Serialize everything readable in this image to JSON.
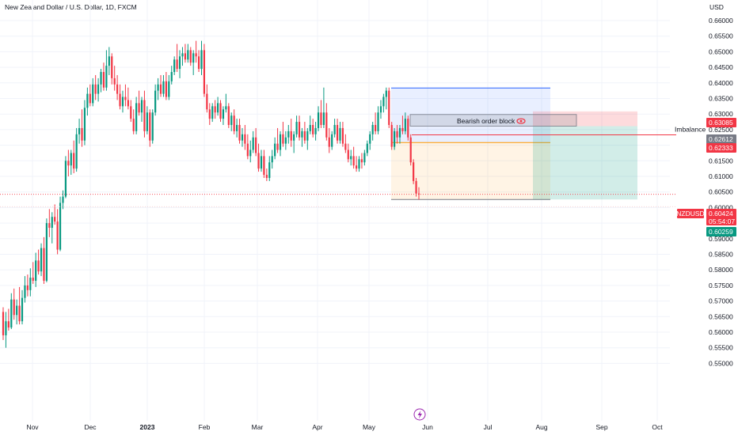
{
  "header": {
    "symbol_title": "New Zealand Dollar / U.S. Dollar, 1D, FXCM",
    "currency": "USD"
  },
  "colors": {
    "up": "#089981",
    "down": "#f23645",
    "price_tag": "#f23645",
    "target_tag": "#089981",
    "neutral_tag": "#787b86",
    "blue_zone": "#2962ff",
    "orange_zone": "#ff9800"
  },
  "chart_data": {
    "type": "candlestick",
    "y_ticks": [
      "0.66000",
      "0.65500",
      "0.65000",
      "0.64500",
      "0.64000",
      "0.63500",
      "0.63000",
      "0.62500",
      "0.62000",
      "0.61500",
      "0.61000",
      "0.60500",
      "0.60000",
      "0.59500",
      "0.59000",
      "0.58500",
      "0.58000",
      "0.57500",
      "0.57000",
      "0.56500",
      "0.56000",
      "0.55500",
      "0.55000"
    ],
    "x_ticks": [
      {
        "label": "Nov",
        "bold": false
      },
      {
        "label": "Dec",
        "bold": false
      },
      {
        "label": "2023",
        "bold": true
      },
      {
        "label": "Feb",
        "bold": false
      },
      {
        "label": "Mar",
        "bold": false
      },
      {
        "label": "Apr",
        "bold": false
      },
      {
        "label": "May",
        "bold": false
      },
      {
        "label": "Jun",
        "bold": false
      },
      {
        "label": "Jul",
        "bold": false
      },
      {
        "label": "Aug",
        "bold": false
      },
      {
        "label": "Sep",
        "bold": false
      },
      {
        "label": "Oct",
        "bold": false
      }
    ],
    "candles": [
      [
        0.5665,
        0.568,
        0.5575,
        0.559,
        "Oct 21"
      ],
      [
        0.559,
        0.5665,
        0.555,
        0.5635,
        "Oct 24"
      ],
      [
        0.5635,
        0.5675,
        0.5605,
        0.5615,
        "Oct 25"
      ],
      [
        0.5615,
        0.5725,
        0.561,
        0.5705,
        "Oct 26"
      ],
      [
        0.5705,
        0.574,
        0.564,
        0.5655,
        "Oct 27"
      ],
      [
        0.5655,
        0.5705,
        0.5625,
        0.5685,
        "Oct 28"
      ],
      [
        0.5685,
        0.5745,
        0.5625,
        0.5635,
        "Oct 31"
      ],
      [
        0.5635,
        0.5735,
        0.5625,
        0.571,
        "Nov 1"
      ],
      [
        0.571,
        0.578,
        0.5695,
        0.575,
        "Nov 2"
      ],
      [
        0.575,
        0.5785,
        0.5715,
        0.5735,
        "Nov 3"
      ],
      [
        0.5735,
        0.5805,
        0.5715,
        0.5775,
        "Nov 4"
      ],
      [
        0.5775,
        0.5825,
        0.5755,
        0.5765,
        "Nov 7"
      ],
      [
        0.5765,
        0.5855,
        0.5745,
        0.583,
        "Nov 8"
      ],
      [
        0.583,
        0.5865,
        0.5785,
        0.5795,
        "Nov 9"
      ],
      [
        0.5795,
        0.5885,
        0.578,
        0.587,
        "Nov 10"
      ],
      [
        0.587,
        0.5905,
        0.5755,
        0.5765,
        "Nov 11"
      ],
      [
        0.5765,
        0.5965,
        0.576,
        0.595,
        "Nov 14"
      ],
      [
        0.595,
        0.5995,
        0.5905,
        0.5935,
        "Nov 15"
      ],
      [
        0.5935,
        0.5985,
        0.5885,
        0.597,
        "Nov 16"
      ],
      [
        0.597,
        0.601,
        0.5945,
        0.5955,
        "Nov 17"
      ],
      [
        0.5955,
        0.5995,
        0.585,
        0.5865,
        "Nov 18"
      ],
      [
        0.5865,
        0.6035,
        0.586,
        0.6015,
        "Nov 21"
      ],
      [
        0.6015,
        0.6055,
        0.5995,
        0.6035,
        "Nov 22"
      ],
      [
        0.6035,
        0.6165,
        0.603,
        0.615,
        "Nov 23"
      ],
      [
        0.615,
        0.6185,
        0.61,
        0.6135,
        "Nov 24"
      ],
      [
        0.6135,
        0.6185,
        0.6105,
        0.6175,
        "Nov 25"
      ],
      [
        0.6175,
        0.6215,
        0.611,
        0.6125,
        "Nov 28"
      ],
      [
        0.6125,
        0.6255,
        0.6115,
        0.6235,
        "Nov 29"
      ],
      [
        0.6235,
        0.6285,
        0.6205,
        0.6255,
        "Nov 30"
      ],
      [
        0.6255,
        0.6315,
        0.6195,
        0.6215,
        "Dec 1"
      ],
      [
        0.6215,
        0.6345,
        0.62,
        0.632,
        "Dec 2"
      ],
      [
        0.632,
        0.6385,
        0.6295,
        0.6365,
        "Dec 5"
      ],
      [
        0.6365,
        0.6395,
        0.6325,
        0.6335,
        "Dec 6"
      ],
      [
        0.6335,
        0.6415,
        0.6325,
        0.6395,
        "Dec 7"
      ],
      [
        0.6395,
        0.6425,
        0.6345,
        0.6365,
        "Dec 8"
      ],
      [
        0.6365,
        0.6415,
        0.634,
        0.6395,
        "Dec 9"
      ],
      [
        0.6395,
        0.6445,
        0.637,
        0.6435,
        "Dec 12"
      ],
      [
        0.6435,
        0.6465,
        0.6375,
        0.6385,
        "Dec 13"
      ],
      [
        0.6385,
        0.6505,
        0.6375,
        0.6455,
        "Dec 14"
      ],
      [
        0.6455,
        0.6515,
        0.6425,
        0.6485,
        "Dec 15"
      ],
      [
        0.6485,
        0.6495,
        0.6395,
        0.6415,
        "Dec 16"
      ],
      [
        0.6415,
        0.6455,
        0.6375,
        0.6395,
        "Dec 19"
      ],
      [
        0.6395,
        0.6425,
        0.6345,
        0.6365,
        "Dec 20"
      ],
      [
        0.6365,
        0.6395,
        0.6315,
        0.6325,
        "Dec 21"
      ],
      [
        0.6325,
        0.6375,
        0.6305,
        0.6355,
        "Dec 22"
      ],
      [
        0.6355,
        0.6395,
        0.6325,
        0.6345,
        "Dec 23"
      ],
      [
        0.6345,
        0.6385,
        0.6315,
        0.6325,
        "Dec 26"
      ],
      [
        0.6325,
        0.6345,
        0.6275,
        0.6285,
        "Dec 27"
      ],
      [
        0.6285,
        0.6315,
        0.6235,
        0.6245,
        "Dec 28"
      ],
      [
        0.6245,
        0.6355,
        0.6235,
        0.6335,
        "Dec 29"
      ],
      [
        0.6335,
        0.6375,
        0.6295,
        0.6305,
        "Dec 30"
      ],
      [
        0.6305,
        0.6355,
        0.6275,
        0.6345,
        "Jan 2"
      ],
      [
        0.6345,
        0.6375,
        0.6225,
        0.6245,
        "Jan 3"
      ],
      [
        0.6245,
        0.6325,
        0.6235,
        0.6305,
        "Jan 4"
      ],
      [
        0.6305,
        0.6315,
        0.6195,
        0.6215,
        "Jan 5"
      ],
      [
        0.6215,
        0.6315,
        0.6205,
        0.6305,
        "Jan 6"
      ],
      [
        0.6305,
        0.6395,
        0.6295,
        0.6375,
        "Jan 9"
      ],
      [
        0.6375,
        0.6415,
        0.6345,
        0.6395,
        "Jan 10"
      ],
      [
        0.6395,
        0.6425,
        0.6355,
        0.6365,
        "Jan 11"
      ],
      [
        0.6365,
        0.6425,
        0.6355,
        0.6405,
        "Jan 12"
      ],
      [
        0.6405,
        0.6435,
        0.6345,
        0.6355,
        "Jan 13"
      ],
      [
        0.6355,
        0.6425,
        0.6345,
        0.6405,
        "Jan 16"
      ],
      [
        0.6405,
        0.6455,
        0.6395,
        0.6435,
        "Jan 17"
      ],
      [
        0.6435,
        0.6485,
        0.6425,
        0.6475,
        "Jan 18"
      ],
      [
        0.6475,
        0.6525,
        0.6435,
        0.6445,
        "Jan 19"
      ],
      [
        0.6445,
        0.6505,
        0.6415,
        0.6485,
        "Jan 20"
      ],
      [
        0.6485,
        0.6515,
        0.6455,
        0.6495,
        "Jan 23"
      ],
      [
        0.6495,
        0.6525,
        0.6465,
        0.6475,
        "Jan 24"
      ],
      [
        0.6475,
        0.6525,
        0.6465,
        0.6505,
        "Jan 25"
      ],
      [
        0.6505,
        0.6515,
        0.6455,
        0.6465,
        "Jan 26"
      ],
      [
        0.6465,
        0.6505,
        0.6425,
        0.6495,
        "Jan 27"
      ],
      [
        0.6495,
        0.6535,
        0.6465,
        0.6485,
        "Jan 30"
      ],
      [
        0.6485,
        0.6505,
        0.6435,
        0.6445,
        "Jan 31"
      ],
      [
        0.6445,
        0.6535,
        0.6425,
        0.6505,
        "Feb 1"
      ],
      [
        0.6505,
        0.6525,
        0.6355,
        0.6365,
        "Feb 2"
      ],
      [
        0.6365,
        0.6395,
        0.6305,
        0.6315,
        "Feb 3"
      ],
      [
        0.6315,
        0.6335,
        0.6265,
        0.6285,
        "Feb 6"
      ],
      [
        0.6285,
        0.6335,
        0.6275,
        0.6325,
        "Feb 7"
      ],
      [
        0.6325,
        0.6345,
        0.6285,
        0.6305,
        "Feb 8"
      ],
      [
        0.6305,
        0.6355,
        0.6295,
        0.6335,
        "Feb 9"
      ],
      [
        0.6335,
        0.6345,
        0.6275,
        0.6285,
        "Feb 10"
      ],
      [
        0.6285,
        0.6325,
        0.6265,
        0.6315,
        "Feb 13"
      ],
      [
        0.6315,
        0.6365,
        0.6305,
        0.6325,
        "Feb 14"
      ],
      [
        0.6325,
        0.6335,
        0.6255,
        0.6265,
        "Feb 15"
      ],
      [
        0.6265,
        0.6305,
        0.6245,
        0.6295,
        "Feb 16"
      ],
      [
        0.6295,
        0.6315,
        0.6235,
        0.6245,
        "Feb 17"
      ],
      [
        0.6245,
        0.6285,
        0.6225,
        0.6265,
        "Feb 20"
      ],
      [
        0.6265,
        0.6285,
        0.6205,
        0.6215,
        "Feb 21"
      ],
      [
        0.6215,
        0.6255,
        0.6195,
        0.6235,
        "Feb 22"
      ],
      [
        0.6235,
        0.6265,
        0.6185,
        0.6205,
        "Feb 23"
      ],
      [
        0.6205,
        0.6235,
        0.6155,
        0.6165,
        "Feb 24"
      ],
      [
        0.6165,
        0.6215,
        0.6145,
        0.6185,
        "Feb 27"
      ],
      [
        0.6185,
        0.6245,
        0.6175,
        0.6225,
        "Feb 28"
      ],
      [
        0.6225,
        0.6255,
        0.6165,
        0.6175,
        "Mar 1"
      ],
      [
        0.6175,
        0.6205,
        0.6115,
        0.6125,
        "Mar 2"
      ],
      [
        0.6125,
        0.6185,
        0.6115,
        0.6165,
        "Mar 3"
      ],
      [
        0.6165,
        0.6185,
        0.6095,
        0.6105,
        "Mar 6"
      ],
      [
        0.6105,
        0.6125,
        0.6085,
        0.6095,
        "Mar 7"
      ],
      [
        0.6095,
        0.6165,
        0.6085,
        0.6145,
        "Mar 8"
      ],
      [
        0.6145,
        0.6185,
        0.6125,
        0.6165,
        "Mar 9"
      ],
      [
        0.6165,
        0.6225,
        0.6155,
        0.6205,
        "Mar 10"
      ],
      [
        0.6205,
        0.6255,
        0.6175,
        0.6185,
        "Mar 13"
      ],
      [
        0.6185,
        0.6245,
        0.6165,
        0.6235,
        "Mar 14"
      ],
      [
        0.6235,
        0.6275,
        0.6195,
        0.6205,
        "Mar 15"
      ],
      [
        0.6205,
        0.6245,
        0.6185,
        0.6225,
        "Mar 16"
      ],
      [
        0.6225,
        0.6265,
        0.6205,
        0.6245,
        "Mar 17"
      ],
      [
        0.6245,
        0.6285,
        0.6195,
        0.6215,
        "Mar 20"
      ],
      [
        0.6215,
        0.6245,
        0.6175,
        0.6235,
        "Mar 21"
      ],
      [
        0.6235,
        0.6295,
        0.6225,
        0.6275,
        "Mar 22"
      ],
      [
        0.6275,
        0.6295,
        0.6215,
        0.6225,
        "Mar 23"
      ],
      [
        0.6225,
        0.6255,
        0.6195,
        0.6245,
        "Mar 24"
      ],
      [
        0.6245,
        0.6275,
        0.6205,
        0.6215,
        "Mar 27"
      ],
      [
        0.6215,
        0.6255,
        0.6185,
        0.6245,
        "Mar 28"
      ],
      [
        0.6245,
        0.6295,
        0.6235,
        0.6265,
        "Mar 29"
      ],
      [
        0.6265,
        0.6285,
        0.6225,
        0.6235,
        "Mar 30"
      ],
      [
        0.6235,
        0.6275,
        0.6215,
        0.6255,
        "Mar 31"
      ],
      [
        0.6255,
        0.6325,
        0.6245,
        0.6305,
        "Apr 3"
      ],
      [
        0.6305,
        0.6345,
        0.6255,
        0.6265,
        "Apr 4"
      ],
      [
        0.6265,
        0.6385,
        0.6255,
        0.6305,
        "Apr 5"
      ],
      [
        0.6305,
        0.6335,
        0.6215,
        0.6225,
        "Apr 6"
      ],
      [
        0.6225,
        0.6255,
        0.6175,
        0.6195,
        "Apr 7"
      ],
      [
        0.6195,
        0.6245,
        0.6185,
        0.6235,
        "Apr 10"
      ],
      [
        0.6235,
        0.6285,
        0.6225,
        0.6265,
        "Apr 11"
      ],
      [
        0.6265,
        0.6285,
        0.6205,
        0.6215,
        "Apr 12"
      ],
      [
        0.6215,
        0.6275,
        0.6205,
        0.6255,
        "Apr 13"
      ],
      [
        0.6255,
        0.6275,
        0.6195,
        0.6205,
        "Apr 14"
      ],
      [
        0.6205,
        0.6235,
        0.6175,
        0.6185,
        "Apr 17"
      ],
      [
        0.6185,
        0.6205,
        0.6145,
        0.6155,
        "Apr 18"
      ],
      [
        0.6155,
        0.6185,
        0.6135,
        0.6165,
        "Apr 19"
      ],
      [
        0.6165,
        0.6195,
        0.6125,
        0.6135,
        "Apr 20"
      ],
      [
        0.6135,
        0.6165,
        0.6115,
        0.6125,
        "Apr 21"
      ],
      [
        0.6125,
        0.6165,
        0.6115,
        0.6155,
        "Apr 24"
      ],
      [
        0.6155,
        0.6175,
        0.6125,
        0.6145,
        "Apr 25"
      ],
      [
        0.6145,
        0.6185,
        0.6135,
        0.6175,
        "Apr 26"
      ],
      [
        0.6175,
        0.6215,
        0.6165,
        0.6205,
        "Apr 27"
      ],
      [
        0.6205,
        0.6245,
        0.6185,
        0.6235,
        "Apr 28"
      ],
      [
        0.6235,
        0.6275,
        0.6215,
        0.6265,
        "May 1"
      ],
      [
        0.6265,
        0.6305,
        0.6235,
        0.6245,
        "May 2"
      ],
      [
        0.6245,
        0.6325,
        0.6235,
        0.6305,
        "May 3"
      ],
      [
        0.6305,
        0.6345,
        0.6285,
        0.6325,
        "May 4"
      ],
      [
        0.6325,
        0.6365,
        0.6305,
        0.6355,
        "May 5"
      ],
      [
        0.6355,
        0.6385,
        0.6315,
        0.6375,
        "May 8"
      ],
      [
        0.6375,
        0.6385,
        0.6255,
        0.6265,
        "May 9"
      ],
      [
        0.6265,
        0.6275,
        0.6185,
        0.6195,
        "May 10"
      ],
      [
        0.6195,
        0.6255,
        0.6185,
        0.6245,
        "May 11"
      ],
      [
        0.6245,
        0.6265,
        0.6205,
        0.6225,
        "May 12"
      ],
      [
        0.6225,
        0.6265,
        0.6205,
        0.6255,
        "May 15"
      ],
      [
        0.6255,
        0.6295,
        0.6235,
        0.6245,
        "May 16"
      ],
      [
        0.6245,
        0.6305,
        0.6235,
        0.6285,
        "May 17"
      ],
      [
        0.6285,
        0.6295,
        0.6215,
        0.6225,
        "May 18"
      ],
      [
        0.6225,
        0.6235,
        0.6135,
        0.6145,
        "May 19"
      ],
      [
        0.6145,
        0.6155,
        0.6075,
        0.6085,
        "May 22"
      ],
      [
        0.6085,
        0.6095,
        0.6035,
        0.6045,
        "May 23"
      ],
      [
        0.6045,
        0.6065,
        0.6025,
        0.6042,
        "May 24"
      ]
    ],
    "levels": {
      "last_price": 0.60424,
      "target": 0.60259,
      "imbalance": 0.62333,
      "order_block_top": 0.63085,
      "order_block_bottom": 0.62612
    },
    "tags": [
      {
        "symbol": "",
        "value": "0.63085",
        "kind": "stop"
      },
      {
        "symbol": "",
        "value": "0.62612",
        "kind": "neutral"
      },
      {
        "symbol": "",
        "value": "0.62333",
        "kind": "stop"
      },
      {
        "symbol": "NZDUSD",
        "value": "0.60424",
        "sub": "05:54:07",
        "kind": "price"
      },
      {
        "symbol": "",
        "value": "0.60259",
        "kind": "target"
      }
    ],
    "annotations": {
      "order_block": "Bearish order block",
      "imbalance": "Imbalance"
    }
  }
}
